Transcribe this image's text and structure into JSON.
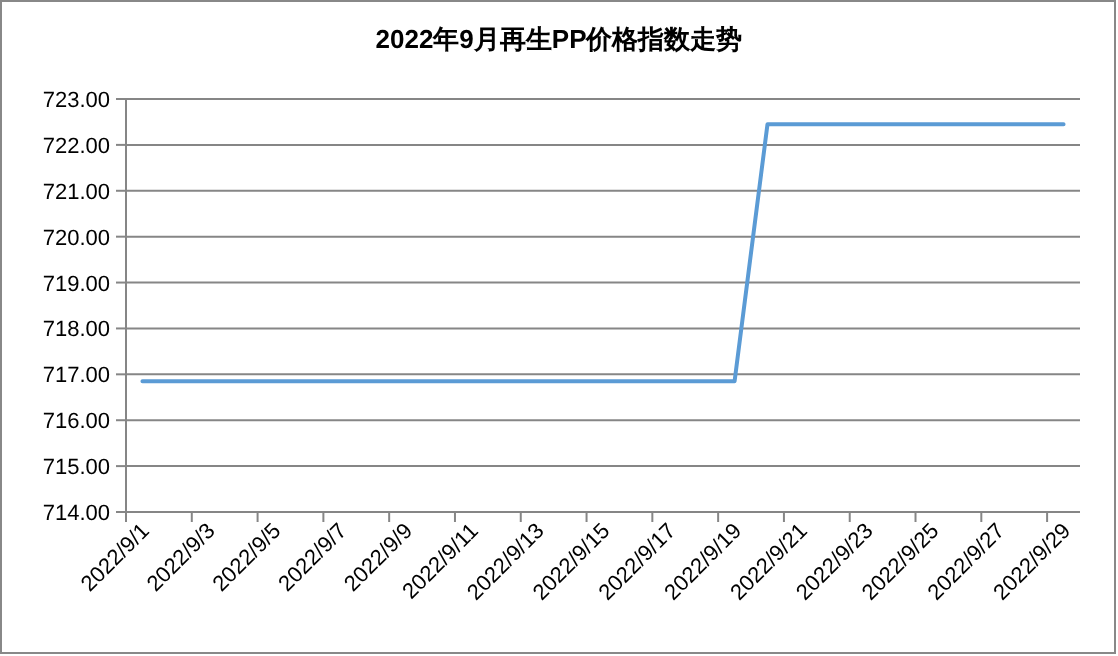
{
  "chart_data": {
    "type": "line",
    "title": "2022年9月再生PP价格指数走势",
    "categories": [
      "2022/9/1",
      null,
      "2022/9/3",
      null,
      "2022/9/5",
      null,
      "2022/9/7",
      null,
      "2022/9/9",
      null,
      "2022/9/11",
      null,
      "2022/9/13",
      null,
      "2022/9/15",
      null,
      "2022/9/17",
      null,
      "2022/9/19",
      null,
      "2022/9/21",
      null,
      "2022/9/23",
      null,
      "2022/9/25",
      null,
      "2022/9/27",
      null,
      "2022/9/29"
    ],
    "series": [
      {
        "color": "#5b9bd5",
        "values": [
          716.85,
          716.85,
          716.85,
          716.85,
          716.85,
          716.85,
          716.85,
          716.85,
          716.85,
          716.85,
          716.85,
          716.85,
          716.85,
          716.85,
          716.85,
          716.85,
          716.85,
          716.85,
          716.85,
          722.45,
          722.45,
          722.45,
          722.45,
          722.45,
          722.45,
          722.45,
          722.45,
          722.45,
          722.45
        ]
      }
    ],
    "ylim": [
      714,
      723
    ],
    "yticks": [
      {
        "value": 714,
        "label": "714.00"
      },
      {
        "value": 715,
        "label": "715.00"
      },
      {
        "value": 716,
        "label": "716.00"
      },
      {
        "value": 717,
        "label": "717.00"
      },
      {
        "value": 718,
        "label": "718.00"
      },
      {
        "value": 719,
        "label": "719.00"
      },
      {
        "value": 720,
        "label": "720.00"
      },
      {
        "value": 721,
        "label": "721.00"
      },
      {
        "value": 722,
        "label": "722.00"
      },
      {
        "value": 723,
        "label": "723.00"
      }
    ],
    "grid": "y",
    "marker": "none",
    "line_style": "solid"
  }
}
